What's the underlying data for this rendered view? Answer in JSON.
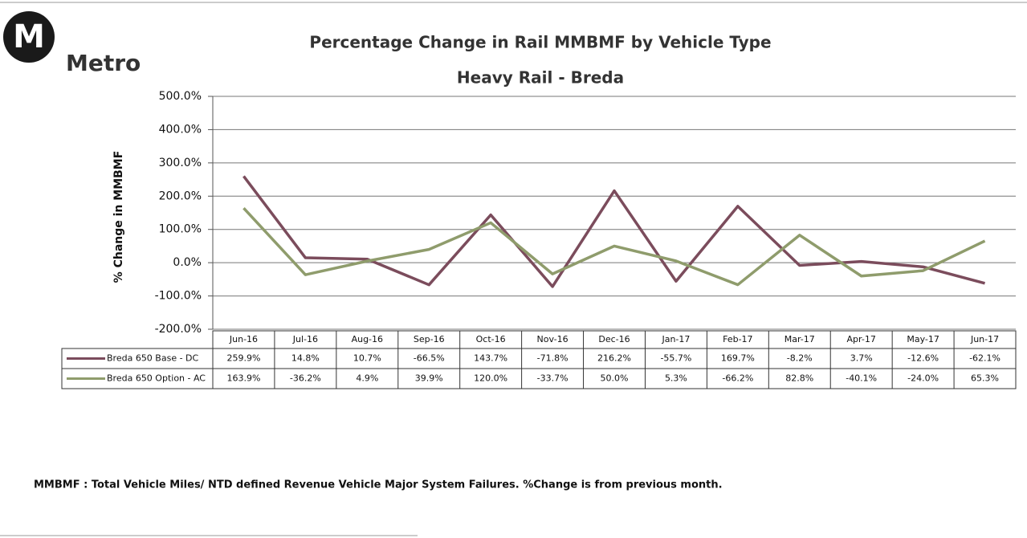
{
  "logo": {
    "letter": "M",
    "name": "Metro"
  },
  "footnote": "MMBMF : Total Vehicle Miles/ NTD defined Revenue Vehicle Major System Failures.  %Change is from previous month.",
  "chart_data": {
    "type": "line",
    "title": "Percentage Change in Rail MMBMF by Vehicle Type",
    "subtitle": "Heavy Rail - Breda",
    "y_label": "% Change in MMBMF",
    "categories": [
      "Jun-16",
      "Jul-16",
      "Aug-16",
      "Sep-16",
      "Oct-16",
      "Nov-16",
      "Dec-16",
      "Jan-17",
      "Feb-17",
      "Mar-17",
      "Apr-17",
      "May-17",
      "Jun-17"
    ],
    "series": [
      {
        "name": "Breda 650 Base - DC",
        "color": "#7b4c5c",
        "values": [
          259.9,
          14.8,
          10.7,
          -66.5,
          143.7,
          -71.8,
          216.2,
          -55.7,
          169.7,
          -8.2,
          3.7,
          -12.6,
          -62.1
        ],
        "value_labels": [
          "259.9%",
          "14.8%",
          "10.7%",
          "-66.5%",
          "143.7%",
          "-71.8%",
          "216.2%",
          "-55.7%",
          "169.7%",
          "-8.2%",
          "3.7%",
          "-12.6%",
          "-62.1%"
        ]
      },
      {
        "name": "Breda 650 Option - AC",
        "color": "#8f9c6c",
        "values": [
          163.9,
          -36.2,
          4.9,
          39.9,
          120.0,
          -33.7,
          50.0,
          5.3,
          -66.2,
          82.8,
          -40.1,
          -24.0,
          65.3
        ],
        "value_labels": [
          "163.9%",
          "-36.2%",
          "4.9%",
          "39.9%",
          "120.0%",
          "-33.7%",
          "50.0%",
          "5.3%",
          "-66.2%",
          "82.8%",
          "-40.1%",
          "-24.0%",
          "65.3%"
        ]
      }
    ],
    "ylim": [
      -200,
      500
    ],
    "yticks": [
      {
        "value": -200,
        "label": "-200.0%"
      },
      {
        "value": -100,
        "label": "-100.0%"
      },
      {
        "value": 0,
        "label": "0.0%"
      },
      {
        "value": 100,
        "label": "100.0%"
      },
      {
        "value": 200,
        "label": "200.0%"
      },
      {
        "value": 300,
        "label": "300.0%"
      },
      {
        "value": 400,
        "label": "400.0%"
      },
      {
        "value": 500,
        "label": "500.0%"
      }
    ],
    "grid": true
  }
}
